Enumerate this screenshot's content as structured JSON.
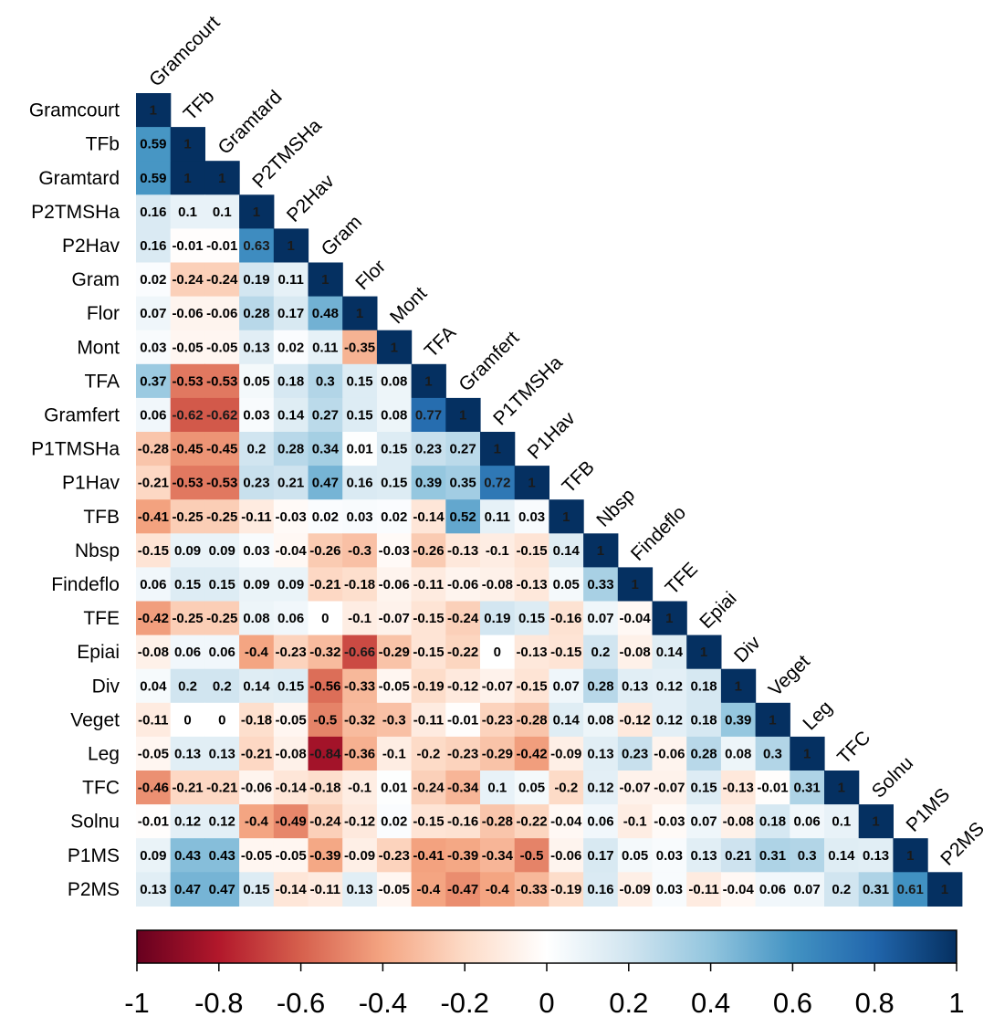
{
  "chart_data": {
    "type": "heatmap",
    "title": "",
    "layout": "lower-triangle correlation matrix",
    "variables": [
      "Gramcourt",
      "TFb",
      "Gramtard",
      "P2TMSHa",
      "P2Hav",
      "Gram",
      "Flor",
      "Mont",
      "TFA",
      "Gramfert",
      "P1TMSHa",
      "P1Hav",
      "TFB",
      "Nbsp",
      "Findeflo",
      "TFE",
      "Epiai",
      "Div",
      "Veget",
      "Leg",
      "TFC",
      "Solnu",
      "P1MS",
      "P2MS"
    ],
    "values": [
      [
        1
      ],
      [
        0.59,
        1
      ],
      [
        0.59,
        1,
        1
      ],
      [
        0.16,
        0.1,
        0.1,
        1
      ],
      [
        0.16,
        -0.01,
        -0.01,
        0.63,
        1
      ],
      [
        0.02,
        -0.24,
        -0.24,
        0.19,
        0.11,
        1
      ],
      [
        0.07,
        -0.06,
        -0.06,
        0.28,
        0.17,
        0.48,
        1
      ],
      [
        0.03,
        -0.05,
        -0.05,
        0.13,
        0.02,
        0.11,
        -0.35,
        1
      ],
      [
        0.37,
        -0.53,
        -0.53,
        0.05,
        0.18,
        0.3,
        0.15,
        0.08,
        1
      ],
      [
        0.06,
        -0.62,
        -0.62,
        0.03,
        0.14,
        0.27,
        0.15,
        0.08,
        0.77,
        1
      ],
      [
        -0.28,
        -0.45,
        -0.45,
        0.2,
        0.28,
        0.34,
        0.01,
        0.15,
        0.23,
        0.27,
        1
      ],
      [
        -0.21,
        -0.53,
        -0.53,
        0.23,
        0.21,
        0.47,
        0.16,
        0.15,
        0.39,
        0.35,
        0.72,
        1
      ],
      [
        -0.41,
        -0.25,
        -0.25,
        -0.11,
        -0.03,
        0.02,
        0.03,
        0.02,
        -0.14,
        0.52,
        0.11,
        0.03,
        1
      ],
      [
        -0.15,
        0.09,
        0.09,
        0.03,
        -0.04,
        -0.26,
        -0.3,
        -0.03,
        -0.26,
        -0.13,
        -0.1,
        -0.15,
        0.14,
        1
      ],
      [
        0.06,
        0.15,
        0.15,
        0.09,
        0.09,
        -0.21,
        -0.18,
        -0.06,
        -0.11,
        -0.06,
        -0.08,
        -0.13,
        0.05,
        0.33,
        1
      ],
      [
        -0.42,
        -0.25,
        -0.25,
        0.08,
        0.06,
        0,
        -0.1,
        -0.07,
        -0.15,
        -0.24,
        0.19,
        0.15,
        -0.16,
        0.07,
        -0.04,
        1
      ],
      [
        -0.08,
        0.06,
        0.06,
        -0.4,
        -0.23,
        -0.32,
        -0.66,
        -0.29,
        -0.15,
        -0.22,
        0,
        -0.13,
        -0.15,
        0.2,
        -0.08,
        0.14,
        1
      ],
      [
        0.04,
        0.2,
        0.2,
        0.14,
        0.15,
        -0.56,
        -0.33,
        -0.05,
        -0.19,
        -0.12,
        -0.07,
        -0.15,
        0.07,
        0.28,
        0.13,
        0.12,
        0.18,
        1
      ],
      [
        -0.11,
        0,
        0,
        -0.18,
        -0.05,
        -0.5,
        -0.32,
        -0.3,
        -0.11,
        -0.01,
        -0.23,
        -0.28,
        0.14,
        0.08,
        -0.12,
        0.12,
        0.18,
        0.39,
        1
      ],
      [
        -0.05,
        0.13,
        0.13,
        -0.21,
        -0.08,
        -0.84,
        -0.36,
        -0.1,
        -0.2,
        -0.23,
        -0.29,
        -0.42,
        -0.09,
        0.13,
        0.23,
        -0.06,
        0.28,
        0.08,
        0.3,
        1
      ],
      [
        -0.46,
        -0.21,
        -0.21,
        -0.06,
        -0.14,
        -0.18,
        -0.1,
        0.01,
        -0.24,
        -0.34,
        0.1,
        0.05,
        -0.2,
        0.12,
        -0.07,
        -0.07,
        0.15,
        -0.13,
        -0.01,
        0.31,
        1
      ],
      [
        -0.01,
        0.12,
        0.12,
        -0.4,
        -0.49,
        -0.24,
        -0.12,
        0.02,
        -0.15,
        -0.16,
        -0.28,
        -0.22,
        -0.04,
        0.06,
        -0.1,
        -0.03,
        0.07,
        -0.08,
        0.18,
        0.06,
        0.1,
        1
      ],
      [
        0.09,
        0.43,
        0.43,
        -0.05,
        -0.05,
        -0.39,
        -0.09,
        -0.23,
        -0.41,
        -0.39,
        -0.34,
        -0.5,
        -0.06,
        0.17,
        0.05,
        0.03,
        0.13,
        0.21,
        0.31,
        0.3,
        0.14,
        0.13,
        1
      ],
      [
        0.13,
        0.47,
        0.47,
        0.15,
        -0.14,
        -0.11,
        0.13,
        -0.05,
        -0.4,
        -0.47,
        -0.4,
        -0.33,
        -0.19,
        0.16,
        -0.09,
        0.03,
        -0.11,
        -0.04,
        0.06,
        0.07,
        0.2,
        0.31,
        0.61,
        1
      ]
    ],
    "colorbar": {
      "range": [
        -1,
        1
      ],
      "ticks": [
        "-1",
        "-0.8",
        "-0.6",
        "-0.4",
        "-0.2",
        "0",
        "0.2",
        "0.4",
        "0.6",
        "0.8",
        "1"
      ],
      "colors": [
        "#67001f",
        "#b2182b",
        "#d6604d",
        "#f4a582",
        "#fddbc7",
        "#ffffff",
        "#d1e5f0",
        "#92c5de",
        "#4393c3",
        "#2166ac",
        "#053061"
      ]
    },
    "legend": "bottom"
  }
}
